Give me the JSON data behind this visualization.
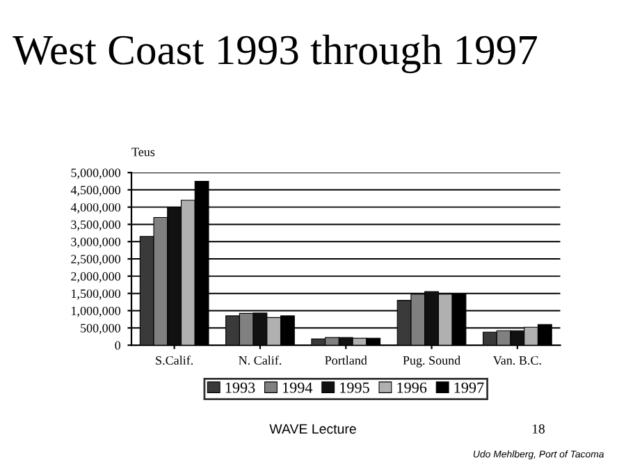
{
  "chart_data": {
    "type": "bar",
    "title": "West Coast 1993 through 1997",
    "ylabel": "Teus",
    "categories": [
      "S.Calif.",
      "N. Calif.",
      "Portland",
      "Pug. Sound",
      "Van. B.C."
    ],
    "series": [
      {
        "name": "1993",
        "color": "#3a3a3a",
        "values": [
          3150000,
          850000,
          180000,
          1300000,
          380000
        ]
      },
      {
        "name": "1994",
        "color": "#808080",
        "values": [
          3700000,
          920000,
          220000,
          1480000,
          420000
        ]
      },
      {
        "name": "1995",
        "color": "#111111",
        "values": [
          4000000,
          930000,
          220000,
          1550000,
          420000
        ]
      },
      {
        "name": "1996",
        "color": "#b0b0b0",
        "values": [
          4200000,
          800000,
          200000,
          1480000,
          520000
        ]
      },
      {
        "name": "1997",
        "color": "#000000",
        "values": [
          4750000,
          850000,
          200000,
          1480000,
          600000
        ]
      }
    ],
    "ylim": [
      0,
      5000000
    ],
    "yticks": [
      {
        "value": 0,
        "label": "0"
      },
      {
        "value": 500000,
        "label": "500,000"
      },
      {
        "value": 1000000,
        "label": "1,000,000"
      },
      {
        "value": 1500000,
        "label": "1,500,000"
      },
      {
        "value": 2000000,
        "label": "2,000,000"
      },
      {
        "value": 2500000,
        "label": "2,500,000"
      },
      {
        "value": 3000000,
        "label": "3,000,000"
      },
      {
        "value": 3500000,
        "label": "3,500,000"
      },
      {
        "value": 4000000,
        "label": "4,000,000"
      },
      {
        "value": 4500000,
        "label": "4,500,000"
      },
      {
        "value": 5000000,
        "label": "5,000,000"
      }
    ],
    "grid": "y",
    "legend": "bottom",
    "annotations": [
      "WAVE Lecture",
      "18",
      "Udo Mehlberg, Port of Tacoma"
    ]
  }
}
